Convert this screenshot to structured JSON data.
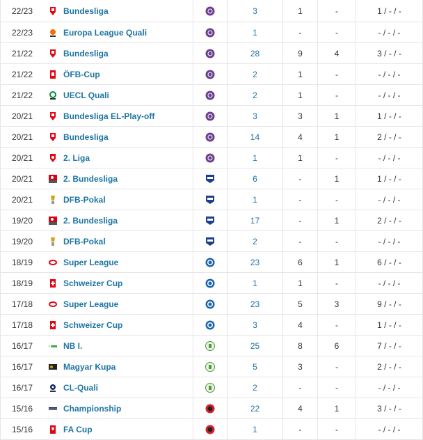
{
  "rows": [
    {
      "season": "22/23",
      "competition": "Bundesliga",
      "comp_icon": "austrian-bundesliga-icon",
      "club_icon": "austria-wien-icon",
      "apps": "3",
      "goals": "1",
      "assists": "-",
      "cards": "1 / - / -"
    },
    {
      "season": "22/23",
      "competition": "Europa League Quali",
      "comp_icon": "europa-league-icon",
      "club_icon": "austria-wien-icon",
      "apps": "1",
      "goals": "-",
      "assists": "-",
      "cards": "- / - / -"
    },
    {
      "season": "21/22",
      "competition": "Bundesliga",
      "comp_icon": "austrian-bundesliga-icon",
      "club_icon": "austria-wien-icon",
      "apps": "28",
      "goals": "9",
      "assists": "4",
      "cards": "3 / - / -"
    },
    {
      "season": "21/22",
      "competition": "ÖFB-Cup",
      "comp_icon": "oefb-cup-icon",
      "club_icon": "austria-wien-icon",
      "apps": "2",
      "goals": "1",
      "assists": "-",
      "cards": "- / - / -"
    },
    {
      "season": "21/22",
      "competition": "UECL Quali",
      "comp_icon": "conference-league-icon",
      "club_icon": "austria-wien-icon",
      "apps": "2",
      "goals": "1",
      "assists": "-",
      "cards": "- / - / -"
    },
    {
      "season": "20/21",
      "competition": "Bundesliga EL-Play-off",
      "comp_icon": "austrian-bundesliga-icon",
      "club_icon": "austria-wien-icon",
      "apps": "3",
      "goals": "3",
      "assists": "1",
      "cards": "1 / - / -"
    },
    {
      "season": "20/21",
      "competition": "Bundesliga",
      "comp_icon": "austrian-bundesliga-icon",
      "club_icon": "austria-wien-icon",
      "apps": "14",
      "goals": "4",
      "assists": "1",
      "cards": "2 / - / -"
    },
    {
      "season": "20/21",
      "competition": "2. Liga",
      "comp_icon": "austrian-2-liga-icon",
      "club_icon": "austria-wien-icon",
      "apps": "1",
      "goals": "1",
      "assists": "-",
      "cards": "- / - / -"
    },
    {
      "season": "20/21",
      "competition": "2. Bundesliga",
      "comp_icon": "german-2-bundesliga-icon",
      "club_icon": "ksc-icon",
      "apps": "6",
      "goals": "-",
      "assists": "1",
      "cards": "1 / - / -"
    },
    {
      "season": "20/21",
      "competition": "DFB-Pokal",
      "comp_icon": "dfb-pokal-icon",
      "club_icon": "ksc-icon",
      "apps": "1",
      "goals": "-",
      "assists": "-",
      "cards": "- / - / -"
    },
    {
      "season": "19/20",
      "competition": "2. Bundesliga",
      "comp_icon": "german-2-bundesliga-icon",
      "club_icon": "ksc-icon",
      "apps": "17",
      "goals": "-",
      "assists": "1",
      "cards": "2 / - / -"
    },
    {
      "season": "19/20",
      "competition": "DFB-Pokal",
      "comp_icon": "dfb-pokal-icon",
      "club_icon": "ksc-icon",
      "apps": "2",
      "goals": "-",
      "assists": "-",
      "cards": "- / - / -"
    },
    {
      "season": "18/19",
      "competition": "Super League",
      "comp_icon": "swiss-super-league-icon",
      "club_icon": "grasshoppers-icon",
      "apps": "23",
      "goals": "6",
      "assists": "1",
      "cards": "6 / - / -"
    },
    {
      "season": "18/19",
      "competition": "Schweizer Cup",
      "comp_icon": "swiss-cup-icon",
      "club_icon": "grasshoppers-icon",
      "apps": "1",
      "goals": "1",
      "assists": "-",
      "cards": "- / - / -"
    },
    {
      "season": "17/18",
      "competition": "Super League",
      "comp_icon": "swiss-super-league-icon",
      "club_icon": "grasshoppers-icon",
      "apps": "23",
      "goals": "5",
      "assists": "3",
      "cards": "9 / - / -"
    },
    {
      "season": "17/18",
      "competition": "Schweizer Cup",
      "comp_icon": "swiss-cup-icon",
      "club_icon": "grasshoppers-icon",
      "apps": "3",
      "goals": "4",
      "assists": "-",
      "cards": "1 / - / -"
    },
    {
      "season": "16/17",
      "competition": "NB I.",
      "comp_icon": "nb-i-icon",
      "club_icon": "ferencvaros-icon",
      "apps": "25",
      "goals": "8",
      "assists": "6",
      "cards": "7 / - / -"
    },
    {
      "season": "16/17",
      "competition": "Magyar Kupa",
      "comp_icon": "magyar-kupa-icon",
      "club_icon": "ferencvaros-icon",
      "apps": "5",
      "goals": "3",
      "assists": "-",
      "cards": "2 / - / -"
    },
    {
      "season": "16/17",
      "competition": "CL-Quali",
      "comp_icon": "champions-league-icon",
      "club_icon": "ferencvaros-icon",
      "apps": "2",
      "goals": "-",
      "assists": "-",
      "cards": "- / - / -"
    },
    {
      "season": "15/16",
      "competition": "Championship",
      "comp_icon": "efl-championship-icon",
      "club_icon": "brentford-icon",
      "apps": "22",
      "goals": "4",
      "assists": "1",
      "cards": "3 / - / -"
    },
    {
      "season": "15/16",
      "competition": "FA Cup",
      "comp_icon": "fa-cup-icon",
      "club_icon": "brentford-icon",
      "apps": "1",
      "goals": "-",
      "assists": "-",
      "cards": "- / - / -"
    }
  ],
  "colors": {
    "link": "#1d75a3",
    "austria_violet": "#6a3f8f",
    "ksc_blue": "#1b3f8c",
    "gc_blue": "#1a64b0",
    "fradi_green": "#4c9a3a",
    "brentford_red": "#d2232a"
  }
}
